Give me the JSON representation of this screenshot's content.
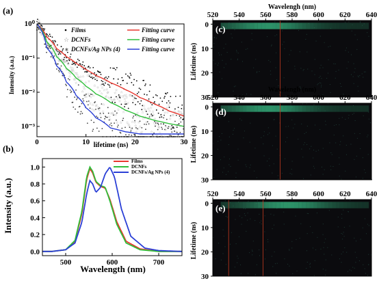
{
  "chart_data": [
    {
      "panel": "(a)",
      "type": "scatter",
      "xlabel": "lifetime (ns)",
      "ylabel": "Intensity (a.u.)",
      "xlim": [
        0,
        30
      ],
      "ylim": [
        0.0005,
        1
      ],
      "yscale": "log",
      "xticks": [
        "0",
        "10",
        "20",
        "30"
      ],
      "yticks": [
        "10⁻³",
        "10⁻²",
        "10⁻¹",
        "10⁰"
      ],
      "legend_position": "top-right",
      "series": [
        {
          "name": "Films",
          "kind": "points",
          "color": "#000000",
          "x": [
            0,
            2,
            4,
            6,
            8,
            10,
            12,
            15,
            18,
            21,
            24,
            27,
            30
          ],
          "y": [
            1.0,
            0.42,
            0.19,
            0.11,
            0.07,
            0.046,
            0.031,
            0.019,
            0.012,
            0.007,
            0.0045,
            0.0028,
            0.002
          ]
        },
        {
          "name": "DCNFs",
          "kind": "points",
          "color": "#8c8c8c",
          "x": [
            0,
            2,
            4,
            6,
            8,
            10,
            12,
            15,
            18,
            21,
            24,
            27,
            30
          ],
          "y": [
            1.0,
            0.3,
            0.11,
            0.05,
            0.026,
            0.015,
            0.009,
            0.005,
            0.003,
            0.002,
            0.0015,
            0.0012,
            0.001
          ]
        },
        {
          "name": "DCNFs/Ag NPs (4)",
          "kind": "points",
          "color": "#404040",
          "x": [
            0,
            2,
            4,
            6,
            8,
            10,
            12,
            15,
            18,
            21,
            24,
            27,
            30
          ],
          "y": [
            1.0,
            0.2,
            0.06,
            0.02,
            0.008,
            0.0035,
            0.0018,
            0.0009,
            0.0007,
            0.0006,
            0.0006,
            0.0006,
            0.0006
          ]
        },
        {
          "name": "Fitting curve",
          "kind": "line",
          "color": "#e8372f",
          "x": [
            0,
            2,
            4,
            6,
            8,
            10,
            12,
            15,
            18,
            21,
            24,
            27,
            30
          ],
          "y": [
            1.0,
            0.42,
            0.19,
            0.11,
            0.07,
            0.046,
            0.031,
            0.019,
            0.012,
            0.007,
            0.0045,
            0.0028,
            0.002
          ]
        },
        {
          "name": "Fitting curve",
          "kind": "line",
          "color": "#2fbf3a",
          "x": [
            0,
            2,
            4,
            6,
            8,
            10,
            12,
            15,
            18,
            21,
            24,
            27,
            30
          ],
          "y": [
            1.0,
            0.3,
            0.11,
            0.05,
            0.026,
            0.015,
            0.009,
            0.005,
            0.003,
            0.002,
            0.0015,
            0.0012,
            0.001
          ]
        },
        {
          "name": "Fitting curve",
          "kind": "line",
          "color": "#2a3fd6",
          "x": [
            0,
            2,
            4,
            6,
            8,
            10,
            12,
            15,
            18,
            21,
            24,
            27,
            30
          ],
          "y": [
            1.0,
            0.2,
            0.06,
            0.02,
            0.008,
            0.0035,
            0.0018,
            0.0009,
            0.0007,
            0.0006,
            0.0006,
            0.0006,
            0.0006
          ]
        }
      ]
    },
    {
      "panel": "(b)",
      "type": "line",
      "xlabel": "Wavelength (nm)",
      "ylabel": "Intensity (a.u.)",
      "xlim": [
        450,
        750
      ],
      "ylim": [
        -0.05,
        1.1
      ],
      "xticks": [
        "500",
        "600",
        "700"
      ],
      "yticks": [
        "0.0",
        "0.2",
        "0.4",
        "0.6",
        "0.8",
        "1.0"
      ],
      "legend_position": "top-right",
      "series": [
        {
          "name": "Films",
          "color": "#e8372f",
          "x": [
            470,
            500,
            520,
            535,
            545,
            552,
            558,
            565,
            575,
            585,
            595,
            610,
            630,
            660,
            700,
            750
          ],
          "y": [
            0.0,
            0.02,
            0.12,
            0.45,
            0.85,
            0.98,
            0.93,
            0.82,
            0.77,
            0.75,
            0.62,
            0.35,
            0.12,
            0.03,
            0.0,
            0.0
          ]
        },
        {
          "name": "DCNFs",
          "color": "#2fbf3a",
          "x": [
            470,
            500,
            520,
            535,
            545,
            552,
            558,
            565,
            575,
            585,
            595,
            610,
            630,
            660,
            700,
            750
          ],
          "y": [
            0.0,
            0.02,
            0.13,
            0.48,
            0.88,
            1.0,
            0.95,
            0.83,
            0.78,
            0.76,
            0.6,
            0.32,
            0.1,
            0.02,
            0.0,
            0.0
          ]
        },
        {
          "name": "DCNFs/Ag NPs (4)",
          "color": "#2a3fd6",
          "x": [
            470,
            500,
            520,
            535,
            545,
            552,
            558,
            565,
            575,
            585,
            595,
            605,
            620,
            640,
            670,
            700,
            750
          ],
          "y": [
            0.0,
            0.02,
            0.1,
            0.35,
            0.68,
            0.84,
            0.8,
            0.7,
            0.76,
            0.92,
            1.0,
            0.88,
            0.5,
            0.18,
            0.04,
            0.01,
            0.0
          ]
        }
      ]
    },
    {
      "panel": "(c)",
      "type": "heatmap",
      "title": "Wavelengh (nm)",
      "ylabel": "Lifetime (ns)",
      "xlim": [
        520,
        640
      ],
      "ylim": [
        0,
        30
      ],
      "xticks": [
        "520",
        "540",
        "560",
        "580",
        "600",
        "620",
        "640"
      ],
      "yticks": [
        "0",
        "10",
        "20",
        "30"
      ],
      "emission_band_ns": [
        0,
        1.5
      ],
      "vertical_line_nm": [
        571
      ]
    },
    {
      "panel": "(d)",
      "type": "heatmap",
      "title": "Wavelengh (nm)",
      "ylabel": "Lifetime (ns)",
      "xlim": [
        520,
        640
      ],
      "ylim": [
        0,
        30
      ],
      "xticks": [
        "520",
        "540",
        "560",
        "580",
        "600",
        "620",
        "640"
      ],
      "yticks": [
        "0",
        "10",
        "20",
        "30"
      ],
      "emission_band_ns": [
        0,
        1.5
      ],
      "vertical_line_nm": [
        571
      ]
    },
    {
      "panel": "(e)",
      "type": "heatmap",
      "ylabel": "Lifetime (ns)",
      "xlim": [
        520,
        640
      ],
      "ylim": [
        0,
        30
      ],
      "xticks": [
        "520",
        "540",
        "560",
        "580",
        "600",
        "620",
        "640"
      ],
      "yticks": [
        "0",
        "10",
        "20",
        "30"
      ],
      "emission_band_ns": [
        0,
        1.5
      ],
      "vertical_line_nm": [
        532,
        558
      ]
    }
  ],
  "colors": {
    "films": "#e8372f",
    "dcnfs": "#2fbf3a",
    "dcnfs_ag": "#2a3fd6",
    "heatmap_bg": "#0b0b0e",
    "heatmap_band": "#2f9a6e",
    "heatmap_line": "#c43a20"
  },
  "legend_a": {
    "films": "Films",
    "dcnfs": "DCNFs",
    "dcnfs_ag": "DCNFs/Ag NPs (4)",
    "fit": "Fitting curve"
  }
}
